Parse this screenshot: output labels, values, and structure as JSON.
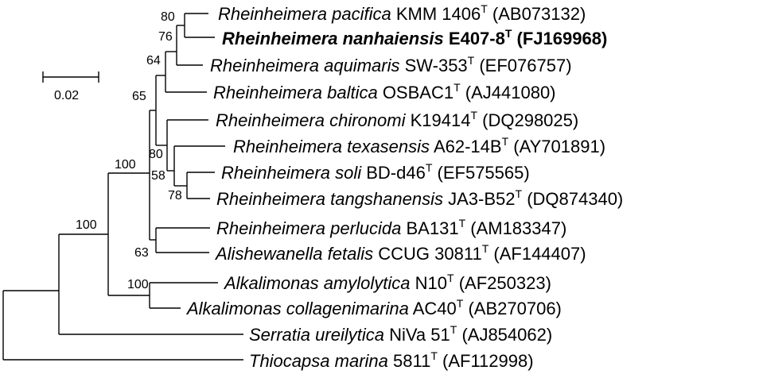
{
  "scale_bar": {
    "label": "0.02"
  },
  "taxa": [
    {
      "genus": "Rheinheimera",
      "species": "pacifica",
      "strain": "KMM 1406",
      "sup": "T",
      "accession": "(AB073132)",
      "bold": false
    },
    {
      "genus": "Rheinheimera",
      "species": "nanhaiensis",
      "strain": "E407-8",
      "sup": "T",
      "accession": "(FJ169968)",
      "bold": true
    },
    {
      "genus": "Rheinheimera",
      "species": "aquimaris",
      "strain": "SW-353",
      "sup": "T",
      "accession": "(EF076757)",
      "bold": false
    },
    {
      "genus": "Rheinheimera",
      "species": "baltica",
      "strain": "OSBAC1",
      "sup": "T",
      "accession": "(AJ441080)",
      "bold": false
    },
    {
      "genus": "Rheinheimera",
      "species": "chironomi",
      "strain": "K19414",
      "sup": "T",
      "accession": "(DQ298025)",
      "bold": false
    },
    {
      "genus": "Rheinheimera",
      "species": "texasensis",
      "strain": "A62-14B",
      "sup": "T",
      "accession": "(AY701891)",
      "bold": false
    },
    {
      "genus": "Rheinheimera",
      "species": "soli",
      "strain": "BD-d46",
      "sup": "T",
      "accession": "(EF575565)",
      "bold": false
    },
    {
      "genus": "Rheinheimera",
      "species": "tangshanensis",
      "strain": "JA3-B52",
      "sup": "T",
      "accession": "(DQ874340)",
      "bold": false
    },
    {
      "genus": "Rheinheimera",
      "species": "perlucida",
      "strain": "BA131",
      "sup": "T",
      "accession": "(AM183347)",
      "bold": false
    },
    {
      "genus": "Alishewanella",
      "species": "fetalis",
      "strain": "CCUG 30811",
      "sup": "T",
      "accession": "(AF144407)",
      "bold": false
    },
    {
      "genus": "Alkalimonas",
      "species": "amylolytica",
      "strain": "N10",
      "sup": "T",
      "accession": "(AF250323)",
      "bold": false
    },
    {
      "genus": "Alkalimonas",
      "species": "collagenimarina",
      "strain": "AC40",
      "sup": "T",
      "accession": "(AB270706)",
      "bold": false
    },
    {
      "genus": "Serratia",
      "species": "ureilytica",
      "strain": "NiVa 51",
      "sup": "T",
      "accession": "(AJ854062)",
      "bold": false
    },
    {
      "genus": "Thiocapsa",
      "species": "marina",
      "strain": "5811",
      "sup": "T",
      "accession": "(AF112998)",
      "bold": false
    }
  ],
  "bootstrap": [
    "80",
    "76",
    "64",
    "65",
    "80",
    "58",
    "78",
    "100",
    "63",
    "100",
    "100"
  ]
}
